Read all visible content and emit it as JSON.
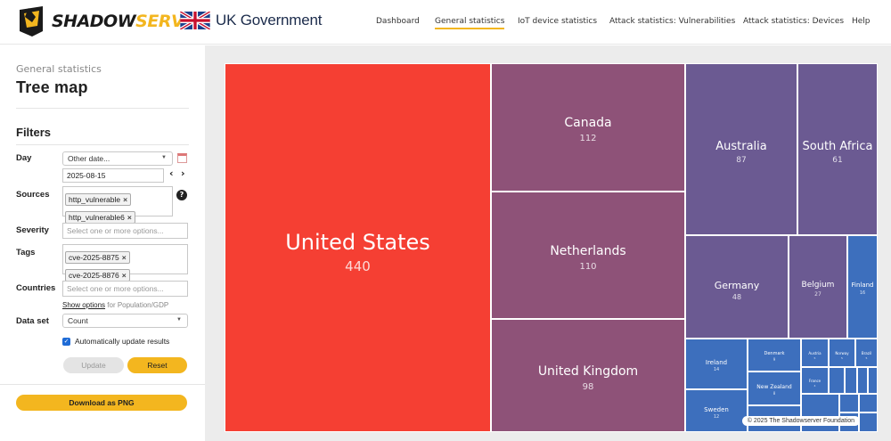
{
  "header": {
    "logo_text_1": "SHADOW",
    "logo_text_2": "SERVER",
    "partner": "UK Government",
    "nav": [
      {
        "label": "Dashboard",
        "active": false
      },
      {
        "label": "General statistics",
        "active": true
      },
      {
        "label": "IoT device statistics",
        "active": false
      },
      {
        "label": "Attack statistics: Vulnerabilities",
        "active": false
      },
      {
        "label": "Attack statistics: Devices",
        "active": false
      },
      {
        "label": "Help",
        "active": false
      }
    ]
  },
  "sidebar": {
    "breadcrumb": "General statistics",
    "title": "Tree map",
    "filters_title": "Filters",
    "day_label": "Day",
    "day_select": "Other date...",
    "date_value": "2025-08-15",
    "sources_label": "Sources",
    "sources": [
      "http_vulnerable",
      "http_vulnerable6"
    ],
    "severity_label": "Severity",
    "severity_placeholder": "Select one or more options...",
    "tags_label": "Tags",
    "tags": [
      "cve-2025-8875",
      "cve-2025-8876"
    ],
    "countries_label": "Countries",
    "countries_placeholder": "Select one or more options...",
    "show_options_link": "Show options",
    "show_options_suffix": "for Population/GDP",
    "dataset_label": "Data set",
    "dataset_select": "Count",
    "auto_update_label": "Automatically update results",
    "update_button": "Update",
    "reset_button": "Reset",
    "download_button": "Download as PNG"
  },
  "treemap": {
    "credit": "© 2025 The Shadowserver Foundation",
    "colors": {
      "us": "#f53f33",
      "purple": "#8e5278",
      "blue_purple": "#6b5a92",
      "blue": "#3d6fbd"
    },
    "cells": [
      {
        "name": "United States",
        "value": "440"
      },
      {
        "name": "Canada",
        "value": "112"
      },
      {
        "name": "Netherlands",
        "value": "110"
      },
      {
        "name": "United Kingdom",
        "value": "98"
      },
      {
        "name": "Australia",
        "value": "87"
      },
      {
        "name": "South Africa",
        "value": "61"
      },
      {
        "name": "Germany",
        "value": "48"
      },
      {
        "name": "Belgium",
        "value": "27"
      },
      {
        "name": "Finland",
        "value": "16"
      },
      {
        "name": "Ireland",
        "value": "14"
      },
      {
        "name": "Sweden",
        "value": "12"
      },
      {
        "name": "Denmark",
        "value": "9"
      },
      {
        "name": "New Zealand",
        "value": "8"
      },
      {
        "name": "Austria",
        "value": "5"
      },
      {
        "name": "Norway",
        "value": "5"
      },
      {
        "name": "Brazil",
        "value": "5"
      },
      {
        "name": "France",
        "value": "4"
      }
    ]
  }
}
